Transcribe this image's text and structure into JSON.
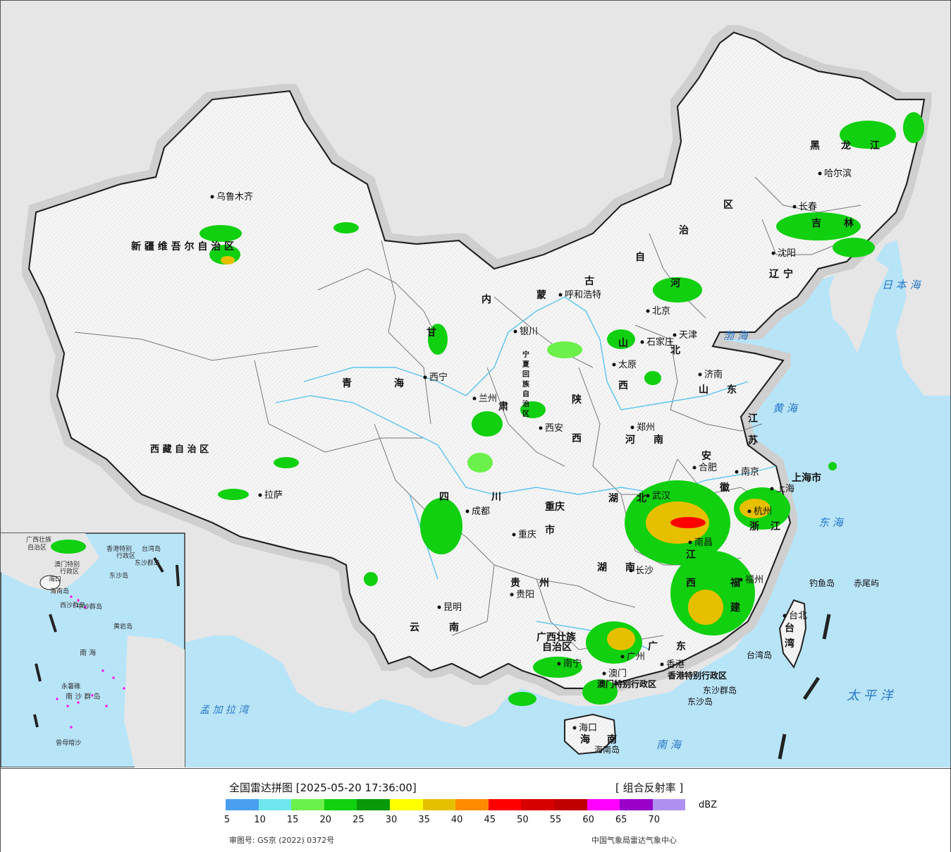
{
  "legend": {
    "title": "全国雷达拼图 [2025-05-20 17:36:00]",
    "product": "[ 组合反射率 ]",
    "unit": "dBZ",
    "ticks": [
      "5",
      "10",
      "15",
      "20",
      "25",
      "30",
      "35",
      "40",
      "45",
      "50",
      "55",
      "60",
      "65",
      "70"
    ],
    "colors": [
      "#4aa0f0",
      "#6ee6ee",
      "#6cf04a",
      "#10d010",
      "#089a08",
      "#ffff00",
      "#e6c000",
      "#ff8c00",
      "#ff0000",
      "#d80000",
      "#c00000",
      "#ff00ff",
      "#9800c8",
      "#b090f0"
    ],
    "approval": "审图号: GS京 (2022) 0372号",
    "agency": "中国气象局雷达气象中心"
  },
  "colors": {
    "sea": "#b8e4f8",
    "land_outside": "#e6e6e6",
    "china": "#f7f7f7",
    "border": "#222222"
  },
  "labels": {
    "regions": [
      {
        "text": "新 疆 维 吾 尔 自 治 区"
      },
      {
        "text": "西 藏 自 治 区"
      },
      {
        "text": "青"
      },
      {
        "text": "海"
      },
      {
        "text": "甘"
      },
      {
        "text": "肃"
      },
      {
        "text": "内"
      },
      {
        "text": "蒙"
      },
      {
        "text": "古"
      },
      {
        "text": "自"
      },
      {
        "text": "治"
      },
      {
        "text": "区"
      },
      {
        "text": "黑"
      },
      {
        "text": "龙"
      },
      {
        "text": "江"
      },
      {
        "text": "吉"
      },
      {
        "text": "林"
      },
      {
        "text": "辽"
      },
      {
        "text": "宁"
      },
      {
        "text": "河"
      },
      {
        "text": "北"
      },
      {
        "text": "山"
      },
      {
        "text": "西"
      },
      {
        "text": "山"
      },
      {
        "text": "东"
      },
      {
        "text": "陕"
      },
      {
        "text": "西"
      },
      {
        "text": "河"
      },
      {
        "text": "南"
      },
      {
        "text": "江"
      },
      {
        "text": "苏"
      },
      {
        "text": "安"
      },
      {
        "text": "徽"
      },
      {
        "text": "上海市"
      },
      {
        "text": "浙"
      },
      {
        "text": "江"
      },
      {
        "text": "湖"
      },
      {
        "text": "北"
      },
      {
        "text": "湖"
      },
      {
        "text": "南"
      },
      {
        "text": "江"
      },
      {
        "text": "西"
      },
      {
        "text": "福"
      },
      {
        "text": "建"
      },
      {
        "text": "四"
      },
      {
        "text": "川"
      },
      {
        "text": "重庆"
      },
      {
        "text": "市"
      },
      {
        "text": "贵"
      },
      {
        "text": "州"
      },
      {
        "text": "云"
      },
      {
        "text": "南"
      },
      {
        "text": "广西壮族"
      },
      {
        "text": "自治区"
      },
      {
        "text": "广"
      },
      {
        "text": "东"
      },
      {
        "text": "海"
      },
      {
        "text": "南"
      },
      {
        "text": "台"
      },
      {
        "text": "湾"
      },
      {
        "text": "宁"
      },
      {
        "text": "夏"
      },
      {
        "text": "回"
      },
      {
        "text": "族"
      },
      {
        "text": "自"
      },
      {
        "text": "治"
      },
      {
        "text": "区"
      },
      {
        "text": "香港特别行政区"
      },
      {
        "text": "澳门特别行政区"
      }
    ],
    "cities": [
      {
        "text": "乌鲁木齐"
      },
      {
        "text": "拉萨"
      },
      {
        "text": "西宁"
      },
      {
        "text": "兰州"
      },
      {
        "text": "银川"
      },
      {
        "text": "呼和浩特"
      },
      {
        "text": "哈尔滨"
      },
      {
        "text": "长春"
      },
      {
        "text": "沈阳"
      },
      {
        "text": "北京"
      },
      {
        "text": "天津"
      },
      {
        "text": "石家庄"
      },
      {
        "text": "太原"
      },
      {
        "text": "济南"
      },
      {
        "text": "郑州"
      },
      {
        "text": "西安"
      },
      {
        "text": "合肥"
      },
      {
        "text": "南京"
      },
      {
        "text": "上海"
      },
      {
        "text": "杭州"
      },
      {
        "text": "武汉"
      },
      {
        "text": "成都"
      },
      {
        "text": "重庆"
      },
      {
        "text": "南昌"
      },
      {
        "text": "长沙"
      },
      {
        "text": "福州"
      },
      {
        "text": "贵阳"
      },
      {
        "text": "昆明"
      },
      {
        "text": "南宁"
      },
      {
        "text": "广州"
      },
      {
        "text": "澳门"
      },
      {
        "text": "香港"
      },
      {
        "text": "台北"
      },
      {
        "text": "海口"
      }
    ],
    "seas": [
      {
        "text": "日 本 海"
      },
      {
        "text": "渤 海"
      },
      {
        "text": "黄 海"
      },
      {
        "text": "东 海"
      },
      {
        "text": "太 平 洋"
      },
      {
        "text": "南 海"
      },
      {
        "text": "孟 加 拉 湾"
      }
    ],
    "islands": [
      {
        "text": "钓鱼岛"
      },
      {
        "text": "赤尾屿"
      },
      {
        "text": "台湾岛"
      },
      {
        "text": "东沙群岛"
      },
      {
        "text": "东沙岛"
      },
      {
        "text": "海南岛"
      }
    ],
    "inset": [
      {
        "text": "广西壮族"
      },
      {
        "text": "自治区"
      },
      {
        "text": "香港特别"
      },
      {
        "text": "行政区"
      },
      {
        "text": "澳门特别"
      },
      {
        "text": "行政区"
      },
      {
        "text": "东沙群岛"
      },
      {
        "text": "东沙岛"
      },
      {
        "text": "海口"
      },
      {
        "text": "海南岛"
      },
      {
        "text": "西沙群岛"
      },
      {
        "text": "中沙群岛"
      },
      {
        "text": "黄岩岛"
      },
      {
        "text": "南 海"
      },
      {
        "text": "永暑礁"
      },
      {
        "text": "南 沙 群 岛"
      },
      {
        "text": "曾母暗沙"
      },
      {
        "text": "台湾岛"
      }
    ]
  }
}
